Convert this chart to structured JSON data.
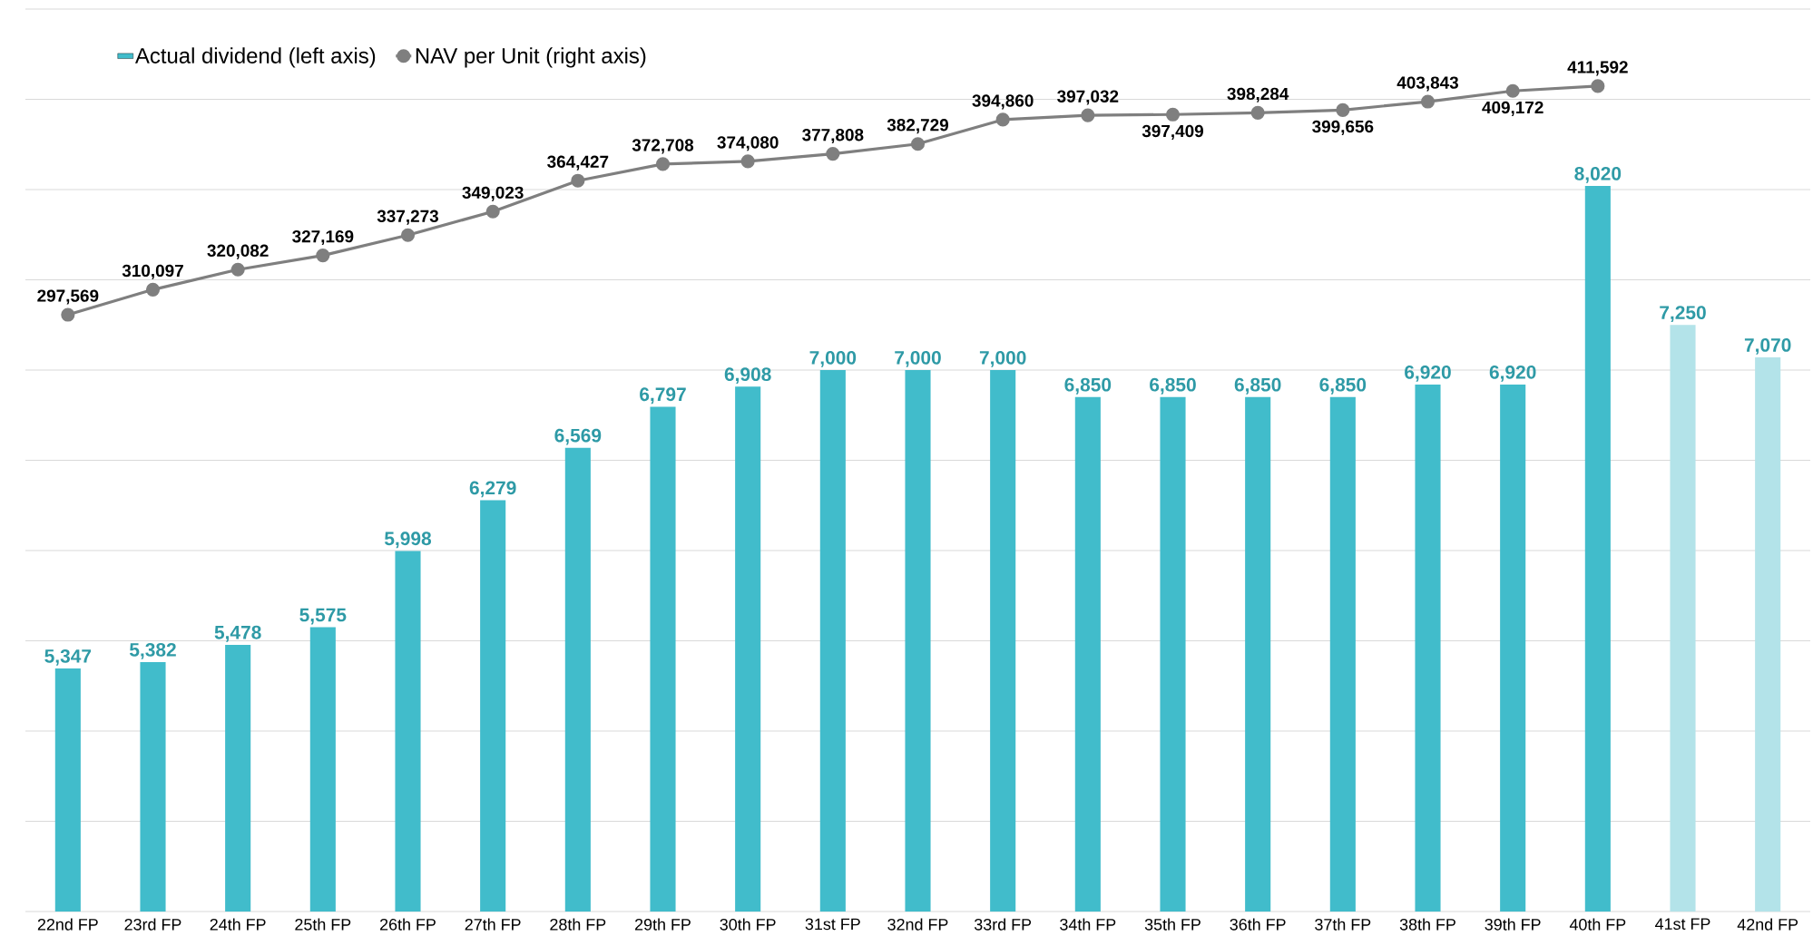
{
  "chart_data": {
    "type": "bar",
    "categories": [
      "22nd FP",
      "23rd FP",
      "24th FP",
      "25th FP",
      "26th FP",
      "27th FP",
      "28th FP",
      "29th FP",
      "30th FP",
      "31st FP",
      "32nd FP",
      "33rd FP",
      "34th FP",
      "35th FP",
      "36th FP",
      "37th FP",
      "38th FP",
      "39th FP",
      "40th FP",
      "41st FP",
      "42nd FP"
    ],
    "series": [
      {
        "name": "Actual dividend (left axis)",
        "color": "#41bccb",
        "colors": [
          "#41bccb",
          "#41bccb",
          "#41bccb",
          "#41bccb",
          "#41bccb",
          "#41bccb",
          "#41bccb",
          "#41bccb",
          "#41bccb",
          "#41bccb",
          "#41bccb",
          "#41bccb",
          "#41bccb",
          "#41bccb",
          "#41bccb",
          "#41bccb",
          "#41bccb",
          "#41bccb",
          "#41bccb",
          "#b3e3e9",
          "#b3e3e9"
        ],
        "values": [
          5347,
          5382,
          5478,
          5575,
          5998,
          6279,
          6569,
          6797,
          6908,
          7000,
          7000,
          7000,
          6850,
          6850,
          6850,
          6850,
          6920,
          6920,
          8020,
          7250,
          7070
        ],
        "value_labels": [
          "5,347",
          "5,382",
          "5,478",
          "5,575",
          "5,998",
          "6,279",
          "6,569",
          "6,797",
          "6,908",
          "7,000",
          "7,000",
          "7,000",
          "6,850",
          "6,850",
          "6,850",
          "6,850",
          "6,920",
          "6,920",
          "8,020",
          "7,250",
          "7,070"
        ]
      },
      {
        "name": "NAV per Unit (right axis)",
        "type": "line",
        "axis": "y2",
        "color": "#7f7f7f",
        "marker": "circle",
        "line_style": "solid",
        "values": [
          297569,
          310097,
          320082,
          327169,
          337273,
          349023,
          364427,
          372708,
          374080,
          377808,
          382729,
          394860,
          397032,
          397409,
          398284,
          399656,
          403843,
          409172,
          411592,
          null,
          null
        ],
        "value_labels": [
          "297,569",
          "310,097",
          "320,082",
          "327,169",
          "337,273",
          "349,023",
          "364,427",
          "372,708",
          "374,080",
          "377,808",
          "382,729",
          "394,860",
          "397,032",
          "397,409",
          "398,284",
          "399,656",
          "403,843",
          "409,172",
          "411,592",
          null,
          null
        ]
      }
    ],
    "ylim": [
      4000,
      9000
    ],
    "yticks": [
      {
        "value": 4000,
        "label": null
      },
      {
        "value": 4500,
        "label": null
      },
      {
        "value": 5000,
        "label": null
      },
      {
        "value": 5500,
        "label": null
      },
      {
        "value": 6000,
        "label": null
      },
      {
        "value": 6500,
        "label": null
      },
      {
        "value": 7000,
        "label": null
      },
      {
        "value": 7500,
        "label": null
      },
      {
        "value": 8000,
        "label": null
      },
      {
        "value": 8500,
        "label": null
      },
      {
        "value": 9000,
        "label": null
      }
    ],
    "y2lim": [
      0,
      450000
    ],
    "grid": "y",
    "legend": "top left",
    "tick_labels": "x"
  }
}
